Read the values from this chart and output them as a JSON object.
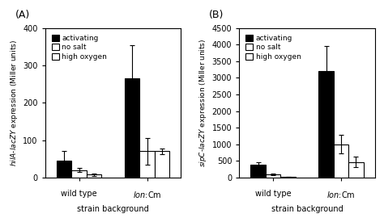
{
  "panel_A": {
    "title": "(A)",
    "ylabel": "hilA-lacZY expression (Miller units)",
    "xlabel": "strain background",
    "ylim": [
      0,
      400
    ],
    "yticks": [
      0,
      100,
      200,
      300,
      400
    ],
    "xtick_labels": [
      "wild type",
      "lon:Cm"
    ],
    "bars": {
      "activating": [
        45,
        265
      ],
      "no salt": [
        20,
        70
      ],
      "high oxygen": [
        8,
        70
      ]
    },
    "errors": {
      "activating": [
        25,
        90
      ],
      "no salt": [
        5,
        35
      ],
      "high oxygen": [
        3,
        8
      ]
    }
  },
  "panel_B": {
    "title": "(B)",
    "ylabel": "sipC-lacZY expression (Miller units)",
    "xlabel": "strain background",
    "ylim": [
      0,
      4500
    ],
    "yticks": [
      0,
      500,
      1000,
      1500,
      2000,
      2500,
      3000,
      3500,
      4000,
      4500
    ],
    "xtick_labels": [
      "wild type",
      "lon:Cm"
    ],
    "bars": {
      "activating": [
        380,
        3200
      ],
      "no salt": [
        90,
        1000
      ],
      "high oxygen": [
        20,
        470
      ]
    },
    "errors": {
      "activating": [
        80,
        750
      ],
      "no salt": [
        20,
        280
      ],
      "high oxygen": [
        10,
        150
      ]
    }
  },
  "legend": {
    "activating": {
      "facecolor": "black",
      "edgecolor": "black"
    },
    "no salt": {
      "facecolor": "white",
      "edgecolor": "black"
    },
    "high oxygen": {
      "facecolor": "white",
      "edgecolor": "black"
    }
  },
  "bar_width": 0.22,
  "bar_colors": {
    "activating": "black",
    "no salt": "white",
    "high oxygen": "white"
  }
}
